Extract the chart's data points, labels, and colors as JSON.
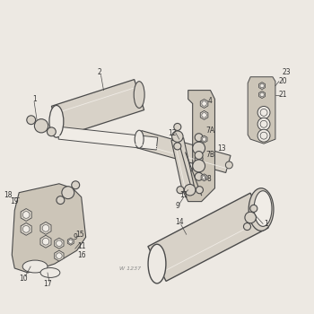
{
  "background_color": "#ede9e3",
  "line_color": "#4a4a4a",
  "part_color": "#d8d2c8",
  "dark_color": "#a09888",
  "highlight_color": "#f0ece6",
  "text_color": "#333333",
  "watermark": "W 1237",
  "figsize": [
    3.5,
    3.5
  ],
  "dpi": 100
}
